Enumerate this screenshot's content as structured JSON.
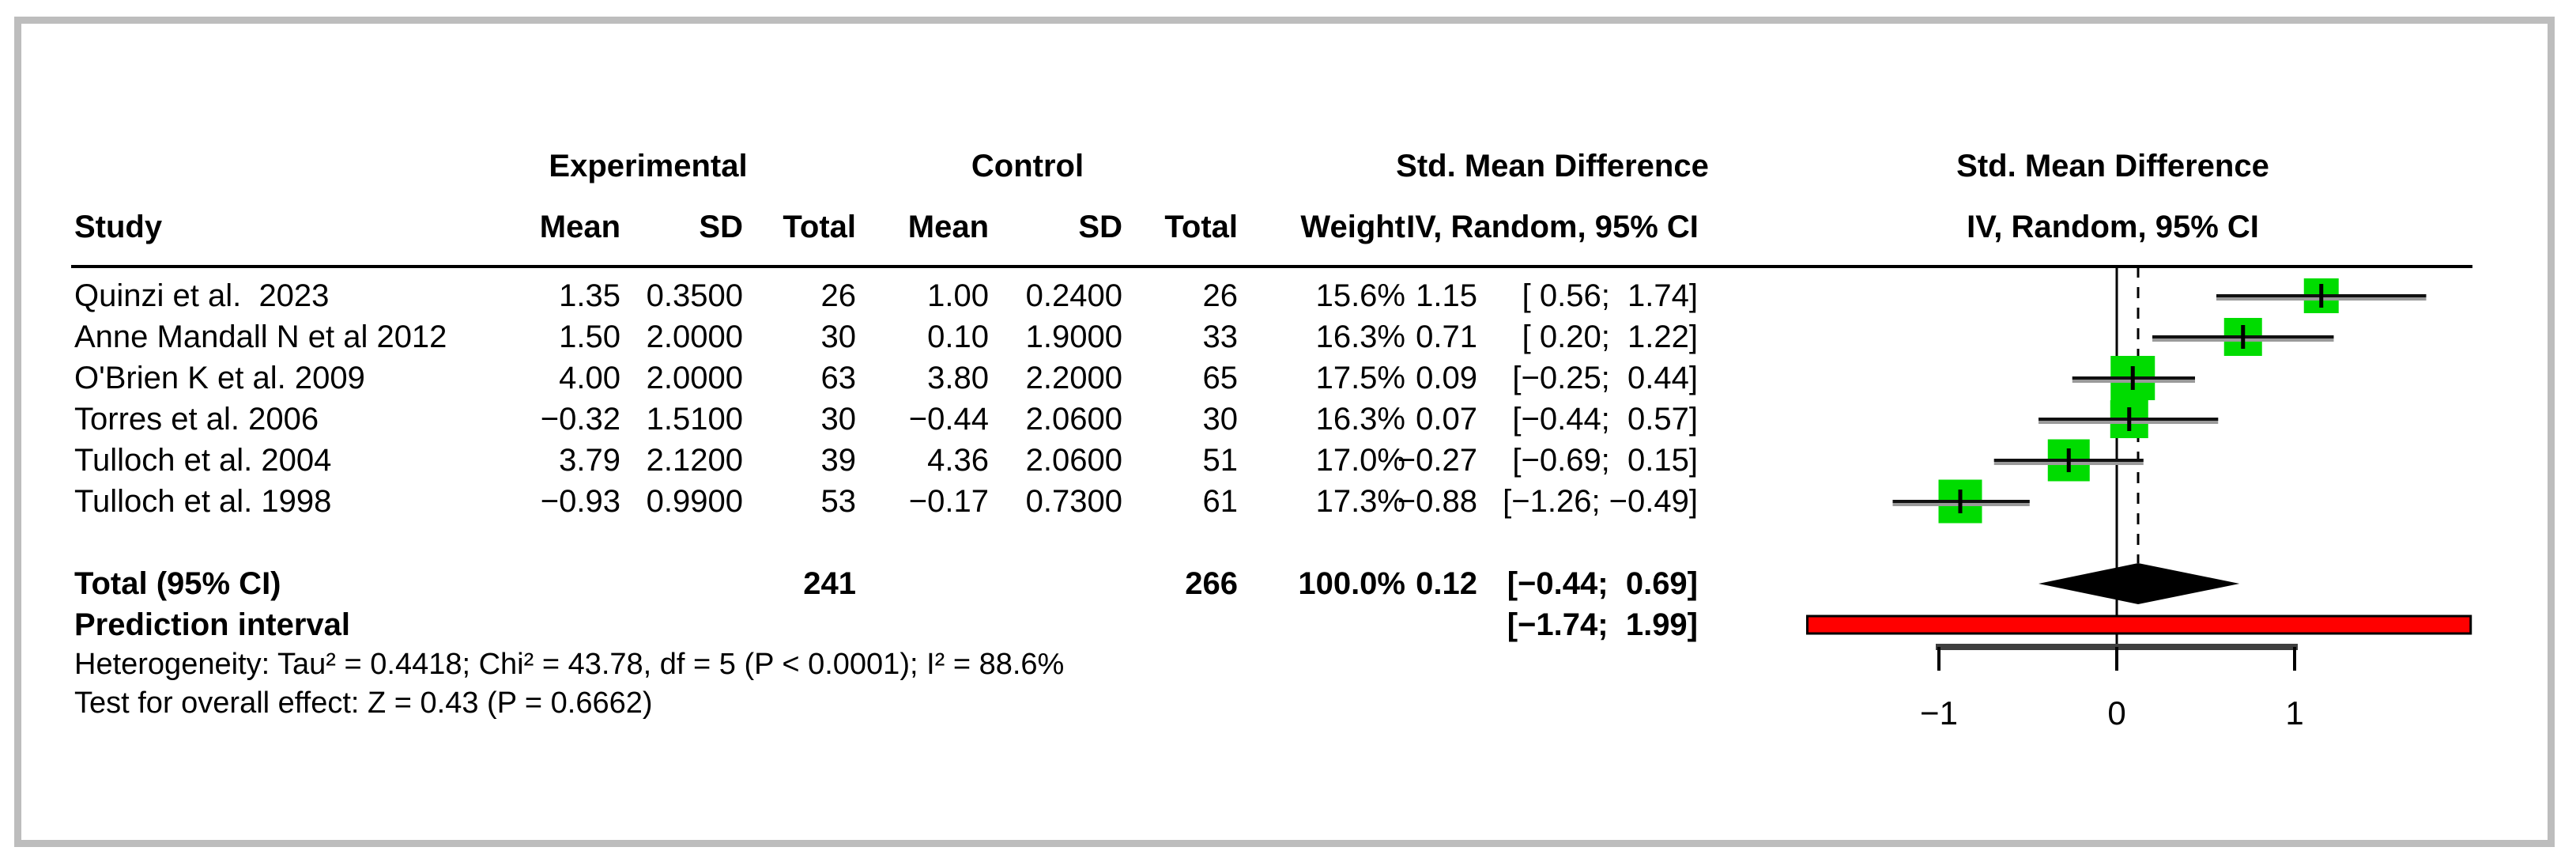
{
  "frame": {
    "border_color": "#bdbdbd",
    "background": "#ffffff"
  },
  "table": {
    "header": {
      "study": "Study",
      "experimental": "Experimental",
      "control": "Control",
      "smd_line1": "Std. Mean Difference",
      "smd_line2": "IV, Random, 95% CI",
      "mean": "Mean",
      "sd": "SD",
      "total": "Total",
      "weight": "Weight"
    },
    "plot_header": {
      "line1": "Std. Mean Difference",
      "line2": "IV, Random, 95% CI"
    },
    "studies": [
      {
        "name": "Quinzi et al.  2023",
        "exp_mean": "1.35",
        "exp_sd": "0.3500",
        "exp_total": "26",
        "ctrl_mean": "1.00",
        "ctrl_sd": "0.2400",
        "ctrl_total": "26",
        "weight": "15.6%",
        "smd": "1.15",
        "ci": "[ 0.56;  1.74]"
      },
      {
        "name": "Anne Mandall N et al 2012",
        "exp_mean": "1.50",
        "exp_sd": "2.0000",
        "exp_total": "30",
        "ctrl_mean": "0.10",
        "ctrl_sd": "1.9000",
        "ctrl_total": "33",
        "weight": "16.3%",
        "smd": "0.71",
        "ci": "[ 0.20;  1.22]"
      },
      {
        "name": "O'Brien K et al. 2009",
        "exp_mean": "4.00",
        "exp_sd": "2.0000",
        "exp_total": "63",
        "ctrl_mean": "3.80",
        "ctrl_sd": "2.2000",
        "ctrl_total": "65",
        "weight": "17.5%",
        "smd": "0.09",
        "ci": "[−0.25;  0.44]"
      },
      {
        "name": "Torres et al. 2006",
        "exp_mean": "−0.32",
        "exp_sd": "1.5100",
        "exp_total": "30",
        "ctrl_mean": "−0.44",
        "ctrl_sd": "2.0600",
        "ctrl_total": "30",
        "weight": "16.3%",
        "smd": "0.07",
        "ci": "[−0.44;  0.57]"
      },
      {
        "name": "Tulloch et al. 2004",
        "exp_mean": "3.79",
        "exp_sd": "2.1200",
        "exp_total": "39",
        "ctrl_mean": "4.36",
        "ctrl_sd": "2.0600",
        "ctrl_total": "51",
        "weight": "17.0%",
        "smd": "−0.27",
        "ci": "[−0.69;  0.15]"
      },
      {
        "name": "Tulloch et al. 1998",
        "exp_mean": "−0.93",
        "exp_sd": "0.9900",
        "exp_total": "53",
        "ctrl_mean": "−0.17",
        "ctrl_sd": "0.7300",
        "ctrl_total": "61",
        "weight": "17.3%",
        "smd": "−0.88",
        "ci": "[−1.26; −0.49]"
      }
    ],
    "total_row": {
      "label": "Total (95% CI)",
      "exp_total": "241",
      "ctrl_total": "266",
      "weight": "100.0%",
      "smd": "0.12",
      "ci": "[−0.44;  0.69]"
    },
    "prediction_row": {
      "label": "Prediction interval",
      "ci": "[−1.74;  1.99]"
    },
    "heterogeneity": "Heterogeneity: Tau² = 0.4418; Chi² = 43.78, df = 5 (P < 0.0001); I² = 88.6%",
    "overall_test": "Test for overall effect: Z = 0.43 (P = 0.6662)"
  },
  "chart_data": {
    "type": "forest",
    "title": "Std. Mean Difference, IV, Random, 95% CI",
    "categories": [
      "Quinzi et al. 2023",
      "Anne Mandall N et al 2012",
      "O'Brien K et al. 2009",
      "Torres et al. 2006",
      "Tulloch et al. 2004",
      "Tulloch et al. 1998"
    ],
    "estimates": [
      1.15,
      0.71,
      0.09,
      0.07,
      -0.27,
      -0.88
    ],
    "ci_low": [
      0.56,
      0.2,
      -0.25,
      -0.44,
      -0.69,
      -1.26
    ],
    "ci_high": [
      1.74,
      1.22,
      0.44,
      0.57,
      0.15,
      -0.49
    ],
    "weights_pct": [
      15.6,
      16.3,
      17.5,
      16.3,
      17.0,
      17.3
    ],
    "pooled": {
      "estimate": 0.12,
      "ci_low": -0.44,
      "ci_high": 0.69
    },
    "prediction_interval": {
      "ci_low": -1.74,
      "ci_high": 1.99
    },
    "axis_ticks": [
      -1,
      0,
      1
    ],
    "xlim": [
      -1.9,
      2.1
    ],
    "zero_line": 0,
    "legend_position": "none",
    "grid": false,
    "colors": {
      "square": "#00DC00",
      "ci_line": "#111111",
      "ci_halo": "#9a9a9a",
      "diamond": "#000000",
      "prediction_bar": "#ff0000",
      "axis": "#3f3f3f",
      "separator": "#000000"
    }
  }
}
